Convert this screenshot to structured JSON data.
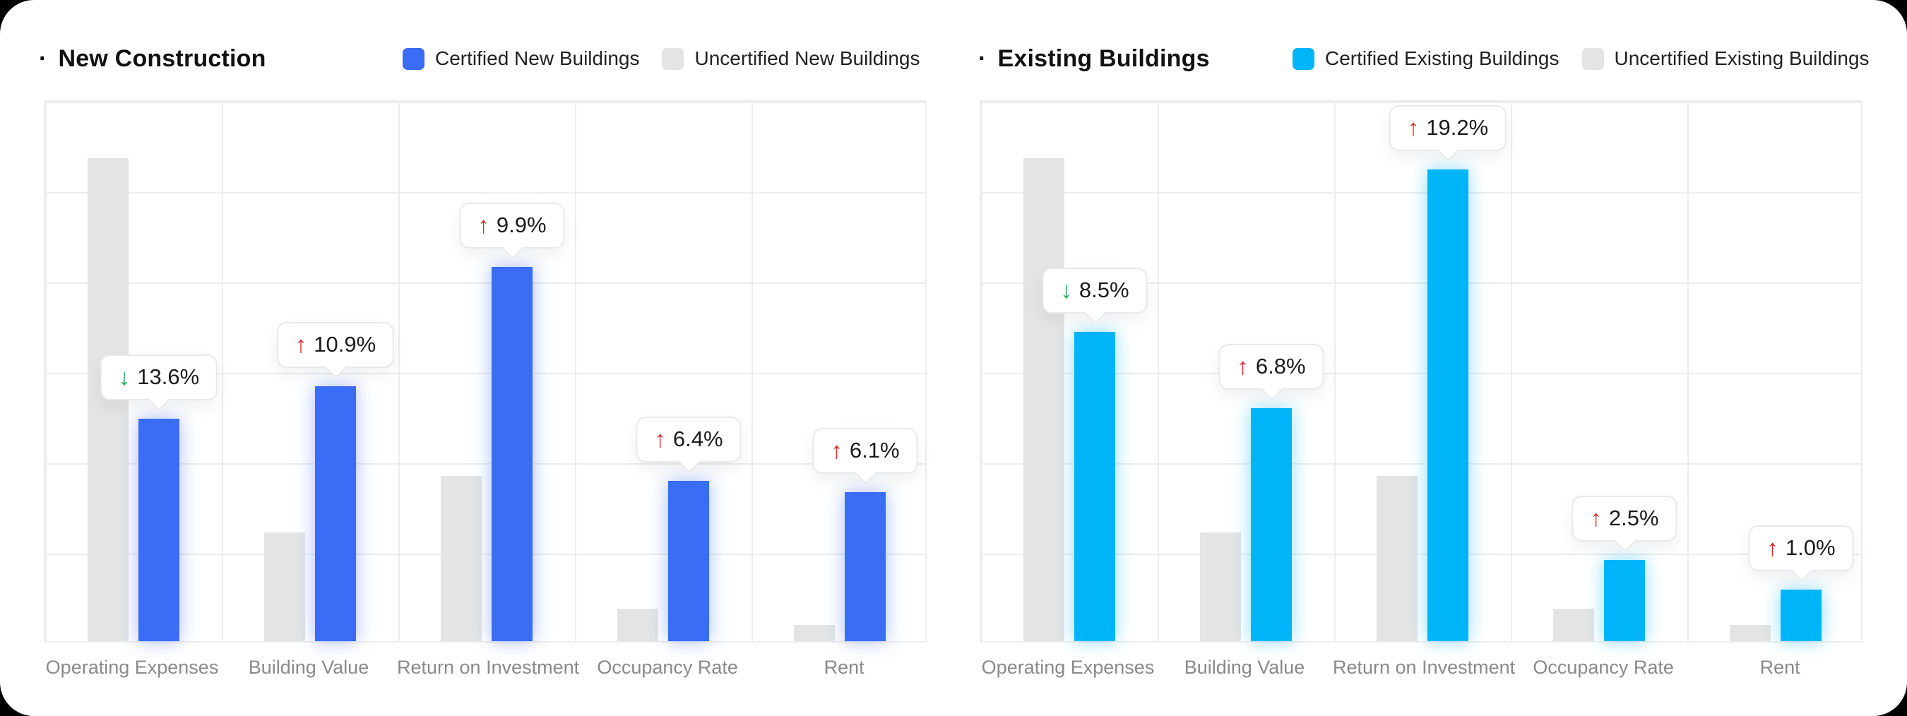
{
  "page": {
    "background_color": "#000000",
    "card_color": "#ffffff",
    "grid_color": "#EDEDED",
    "arrow_up_color": "#D92C2C",
    "arrow_down_color": "#17AB4F",
    "title_bullet": "·"
  },
  "chart_data": [
    {
      "type": "bar",
      "title": "New Construction",
      "categories": [
        "Operating Expenses",
        "Building Value",
        "Return on Investment",
        "Occupancy Rate",
        "Rent"
      ],
      "series": [
        {
          "name": "Certified New Buildings",
          "role": "certified",
          "color": "#3B6CF6",
          "values": [
            41,
            47,
            69,
            29.5,
            27.5
          ]
        },
        {
          "name": "Uncertified New Buildings",
          "role": "uncertified",
          "color": "#E4E4E4",
          "values": [
            89,
            20,
            30.5,
            6,
            3
          ]
        }
      ],
      "annotations": [
        {
          "category": "Operating Expenses",
          "label": "13.6%",
          "direction": "down"
        },
        {
          "category": "Building Value",
          "label": "10.9%",
          "direction": "up"
        },
        {
          "category": "Return on Investment",
          "label": "9.9%",
          "direction": "up"
        },
        {
          "category": "Occupancy Rate",
          "label": "6.4%",
          "direction": "up"
        },
        {
          "category": "Rent",
          "label": "6.1%",
          "direction": "up"
        }
      ],
      "ylabel": "",
      "xlabel": "",
      "ylim": [
        0,
        100
      ],
      "y_axis_labels_visible": false,
      "grid": true,
      "legend_position": "top"
    },
    {
      "type": "bar",
      "title": "Existing Buildings",
      "categories": [
        "Operating Expenses",
        "Building Value",
        "Return on Investment",
        "Occupancy Rate",
        "Rent"
      ],
      "series": [
        {
          "name": "Certified Existing Buildings",
          "role": "certified",
          "color": "#00B5F7",
          "values": [
            57,
            43,
            87,
            15,
            9.5
          ]
        },
        {
          "name": "Uncertified Existing Buildings",
          "role": "uncertified",
          "color": "#E4E4E4",
          "values": [
            89,
            20,
            30.5,
            6,
            3
          ]
        }
      ],
      "annotations": [
        {
          "category": "Operating Expenses",
          "label": "8.5%",
          "direction": "down"
        },
        {
          "category": "Building Value",
          "label": "6.8%",
          "direction": "up"
        },
        {
          "category": "Return on Investment",
          "label": "19.2%",
          "direction": "up"
        },
        {
          "category": "Occupancy Rate",
          "label": "2.5%",
          "direction": "up"
        },
        {
          "category": "Rent",
          "label": "1.0%",
          "direction": "up"
        }
      ],
      "ylabel": "",
      "xlabel": "",
      "ylim": [
        0,
        100
      ],
      "y_axis_labels_visible": false,
      "grid": true,
      "legend_position": "top"
    }
  ]
}
